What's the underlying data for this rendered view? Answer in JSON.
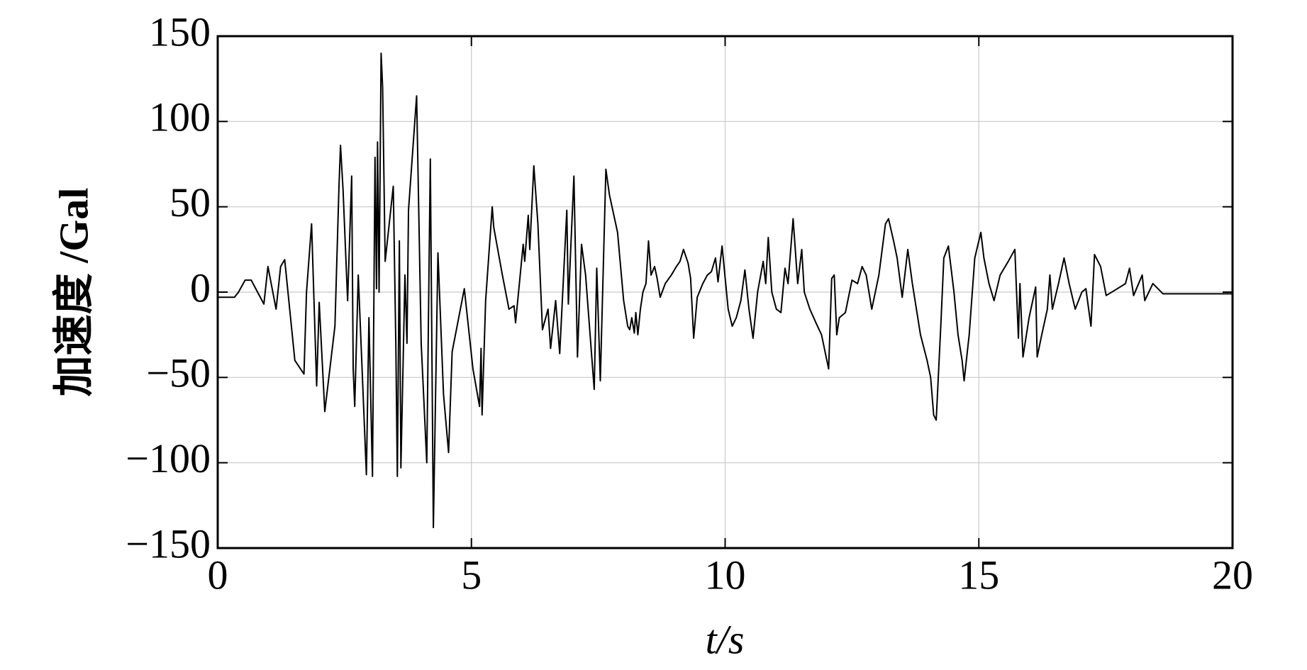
{
  "chart_data": {
    "type": "line",
    "xlabel": "t/s",
    "ylabel": "加速度 /Gal",
    "xlim": [
      0,
      20
    ],
    "xticks": [
      0,
      5,
      10,
      15,
      20
    ],
    "ylim": [
      -150,
      150
    ],
    "yticks": [
      {
        "value": -150,
        "label": "−150"
      },
      {
        "value": -100,
        "label": "−100"
      },
      {
        "value": -50,
        "label": "−50"
      },
      0,
      50,
      100,
      150
    ],
    "grid": true,
    "color": "#000000",
    "x": [
      0,
      0.33,
      0.41,
      0.54,
      0.66,
      0.91,
      0.99,
      1.15,
      1.24,
      1.32,
      1.52,
      1.7,
      1.75,
      1.85,
      1.95,
      2.0,
      2.11,
      2.31,
      2.39,
      2.42,
      2.47,
      2.56,
      2.64,
      2.67,
      2.7,
      2.77,
      2.93,
      2.98,
      3.05,
      3.1,
      3.13,
      3.15,
      3.18,
      3.22,
      3.25,
      3.3,
      3.46,
      3.51,
      3.54,
      3.58,
      3.61,
      3.69,
      3.73,
      3.76,
      3.92,
      4.01,
      4.12,
      4.19,
      4.25,
      4.34,
      4.45,
      4.55,
      4.62,
      4.86,
      5.03,
      5.16,
      5.19,
      5.21,
      5.28,
      5.41,
      5.44,
      5.61,
      5.74,
      5.84,
      5.87,
      6.02,
      6.05,
      6.12,
      6.15,
      6.23,
      6.31,
      6.4,
      6.51,
      6.56,
      6.66,
      6.74,
      6.88,
      6.91,
      7.02,
      7.09,
      7.17,
      7.25,
      7.42,
      7.47,
      7.54,
      7.65,
      7.72,
      7.88,
      8.0,
      8.08,
      8.12,
      8.16,
      8.21,
      8.24,
      8.28,
      8.33,
      8.38,
      8.44,
      8.49,
      8.54,
      8.61,
      8.66,
      8.72,
      8.82,
      8.94,
      9.04,
      9.11,
      9.18,
      9.27,
      9.32,
      9.38,
      9.45,
      9.56,
      9.65,
      9.73,
      9.81,
      9.86,
      9.94,
      10.06,
      10.14,
      10.22,
      10.31,
      10.39,
      10.47,
      10.55,
      10.64,
      10.75,
      10.8,
      10.85,
      10.92,
      11.01,
      11.1,
      11.18,
      11.24,
      11.34,
      11.43,
      11.51,
      11.56,
      11.67,
      11.79,
      11.9,
      12.04,
      12.1,
      12.15,
      12.2,
      12.25,
      12.37,
      12.5,
      12.61,
      12.7,
      12.78,
      12.89,
      13.03,
      13.16,
      13.22,
      13.32,
      13.39,
      13.49,
      13.6,
      13.69,
      13.77,
      13.85,
      13.98,
      14.05,
      14.11,
      14.16,
      14.25,
      14.31,
      14.4,
      14.51,
      14.59,
      14.67,
      14.71,
      14.81,
      14.92,
      15.04,
      15.1,
      15.2,
      15.3,
      15.42,
      15.58,
      15.71,
      15.78,
      15.81,
      15.87,
      15.99,
      16.12,
      16.15,
      16.24,
      16.35,
      16.4,
      16.45,
      16.57,
      16.68,
      16.78,
      16.9,
      17.03,
      17.11,
      17.21,
      17.28,
      17.4,
      17.51,
      17.73,
      17.89,
      17.97,
      18.05,
      18.22,
      18.27,
      18.43,
      18.63,
      20.0
    ],
    "values": [
      -3,
      -3,
      0,
      7,
      7,
      -7,
      15,
      -10,
      15,
      19,
      -40,
      -48,
      0,
      40,
      -55,
      -6,
      -70,
      -20,
      62,
      86,
      60,
      -5,
      68,
      -45,
      -67,
      10,
      -107,
      -15,
      -108,
      79,
      2,
      88,
      0,
      140,
      120,
      18,
      62,
      -30,
      -108,
      30,
      -103,
      10,
      -30,
      48,
      115,
      -30,
      -100,
      78,
      -138,
      23,
      -60,
      -94,
      -35,
      2,
      -45,
      -67,
      -33,
      -72,
      -5,
      50,
      38,
      10,
      -10,
      -8,
      -18,
      28,
      18,
      45,
      25,
      74,
      40,
      -22,
      -10,
      -33,
      -5,
      -36,
      48,
      -7,
      68,
      -38,
      28,
      10,
      -57,
      14,
      -52,
      72,
      57,
      35,
      -5,
      -20,
      -22,
      -15,
      -24,
      -12,
      -25,
      -10,
      0,
      5,
      30,
      10,
      15,
      8,
      -3,
      5,
      10,
      15,
      18,
      25,
      17,
      8,
      -27,
      -3,
      5,
      10,
      12,
      20,
      6,
      27,
      -10,
      -20,
      -15,
      -5,
      13,
      -10,
      -27,
      0,
      18,
      5,
      32,
      0,
      -10,
      -12,
      14,
      5,
      43,
      5,
      25,
      0,
      -10,
      -18,
      -25,
      -45,
      8,
      10,
      -25,
      -15,
      -12,
      7,
      5,
      15,
      10,
      -10,
      10,
      40,
      43,
      30,
      20,
      -3,
      25,
      5,
      -10,
      -25,
      -40,
      -50,
      -72,
      -75,
      -20,
      20,
      27,
      0,
      -25,
      -40,
      -52,
      -25,
      20,
      35,
      20,
      5,
      -5,
      10,
      18,
      25,
      -27,
      5,
      -38,
      -15,
      3,
      -38,
      -25,
      -10,
      10,
      -10,
      5,
      20,
      5,
      -10,
      0,
      2,
      -20,
      22,
      15,
      -2,
      2,
      5,
      14,
      -2,
      10,
      -5,
      5,
      -1,
      -1
    ]
  }
}
